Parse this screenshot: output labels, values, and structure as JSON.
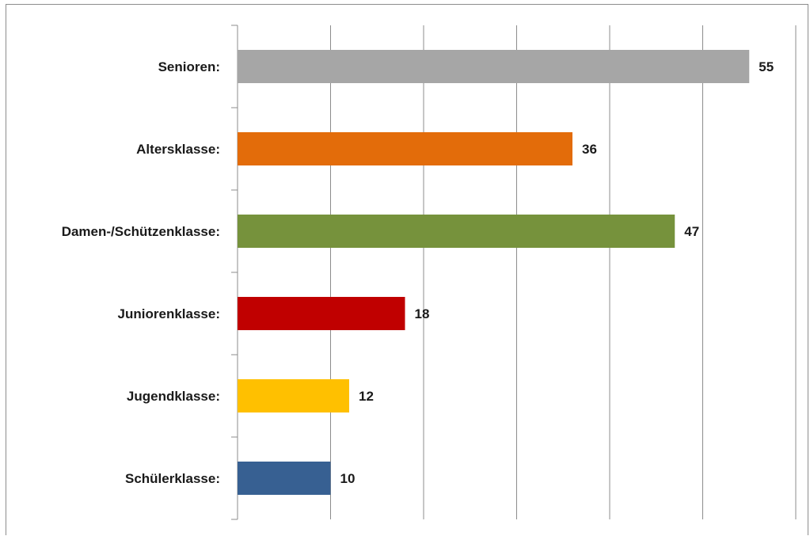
{
  "chart_data": {
    "type": "bar",
    "orientation": "horizontal",
    "categories": [
      "Senioren:",
      "Altersklasse:",
      "Damen-/Schützenklasse:",
      "Juniorenklasse:",
      "Jugendklasse:",
      "Schülerklasse:"
    ],
    "values": [
      55,
      36,
      47,
      18,
      12,
      10
    ],
    "colors": [
      "#a6a6a6",
      "#e36c0a",
      "#76923c",
      "#c00000",
      "#ffc000",
      "#376092"
    ],
    "xlim": [
      0,
      60
    ],
    "x_gridline_step": 10,
    "grid": true,
    "x_tick_labels_shown": false,
    "data_labels": true,
    "legend": "none",
    "title": "",
    "xlabel": "",
    "ylabel": ""
  }
}
